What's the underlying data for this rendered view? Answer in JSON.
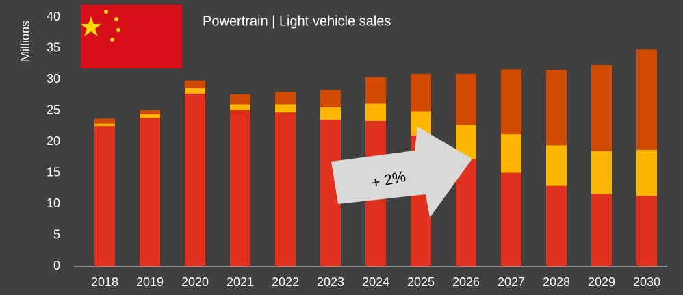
{
  "chart_data": {
    "type": "stacked-bar",
    "title": "Powertrain | Light vehicle sales",
    "ylabel": "Millions",
    "categories": [
      "2018",
      "2019",
      "2020",
      "2021",
      "2022",
      "2023",
      "2024",
      "2025",
      "2026",
      "2027",
      "2028",
      "2029",
      "2030"
    ],
    "series": [
      {
        "color": "#e0301e",
        "values": [
          22.5,
          23.8,
          27.7,
          25.1,
          24.7,
          23.5,
          23.3,
          21.0,
          17.2,
          15.0,
          12.9,
          11.6,
          11.3
        ]
      },
      {
        "color": "#ffb600",
        "values": [
          0.4,
          0.6,
          0.9,
          0.9,
          1.3,
          2.0,
          2.8,
          3.9,
          5.5,
          6.2,
          6.5,
          6.9,
          7.4
        ]
      },
      {
        "color": "#d04a02",
        "values": [
          0.8,
          0.7,
          1.2,
          1.6,
          2.0,
          2.8,
          4.3,
          6.0,
          8.2,
          10.4,
          12.1,
          13.8,
          16.1
        ]
      }
    ],
    "annotation": "+ 2%",
    "ylim": [
      0,
      40
    ],
    "yticks": [
      0,
      5,
      10,
      15,
      20,
      25,
      30,
      35,
      40
    ]
  }
}
